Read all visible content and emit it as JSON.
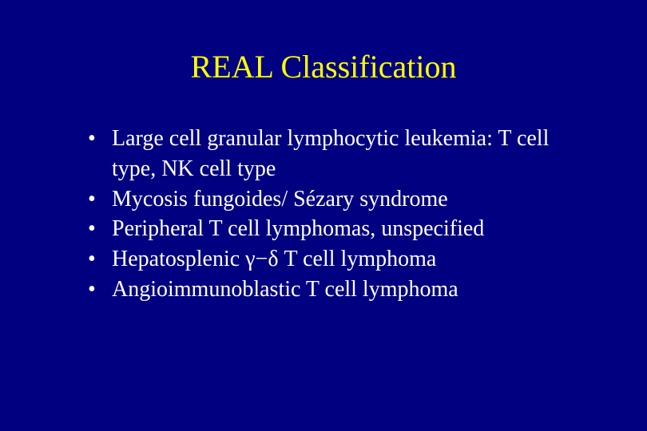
{
  "slide": {
    "title": "REAL Classification",
    "bullets": [
      "Large cell granular lymphocytic leukemia: T cell type, NK cell type",
      "Mycosis fungoides/ Sézary syndrome",
      "Peripheral T cell lymphomas, unspecified",
      "Hepatosplenic γ−δ T cell lymphoma",
      "Angioimmunoblastic T cell lymphoma"
    ],
    "background_color": "#000080",
    "title_color": "#ffff00",
    "text_color": "#ffffff",
    "title_fontsize": 40,
    "bullet_fontsize": 28,
    "font_family": "Times New Roman"
  }
}
